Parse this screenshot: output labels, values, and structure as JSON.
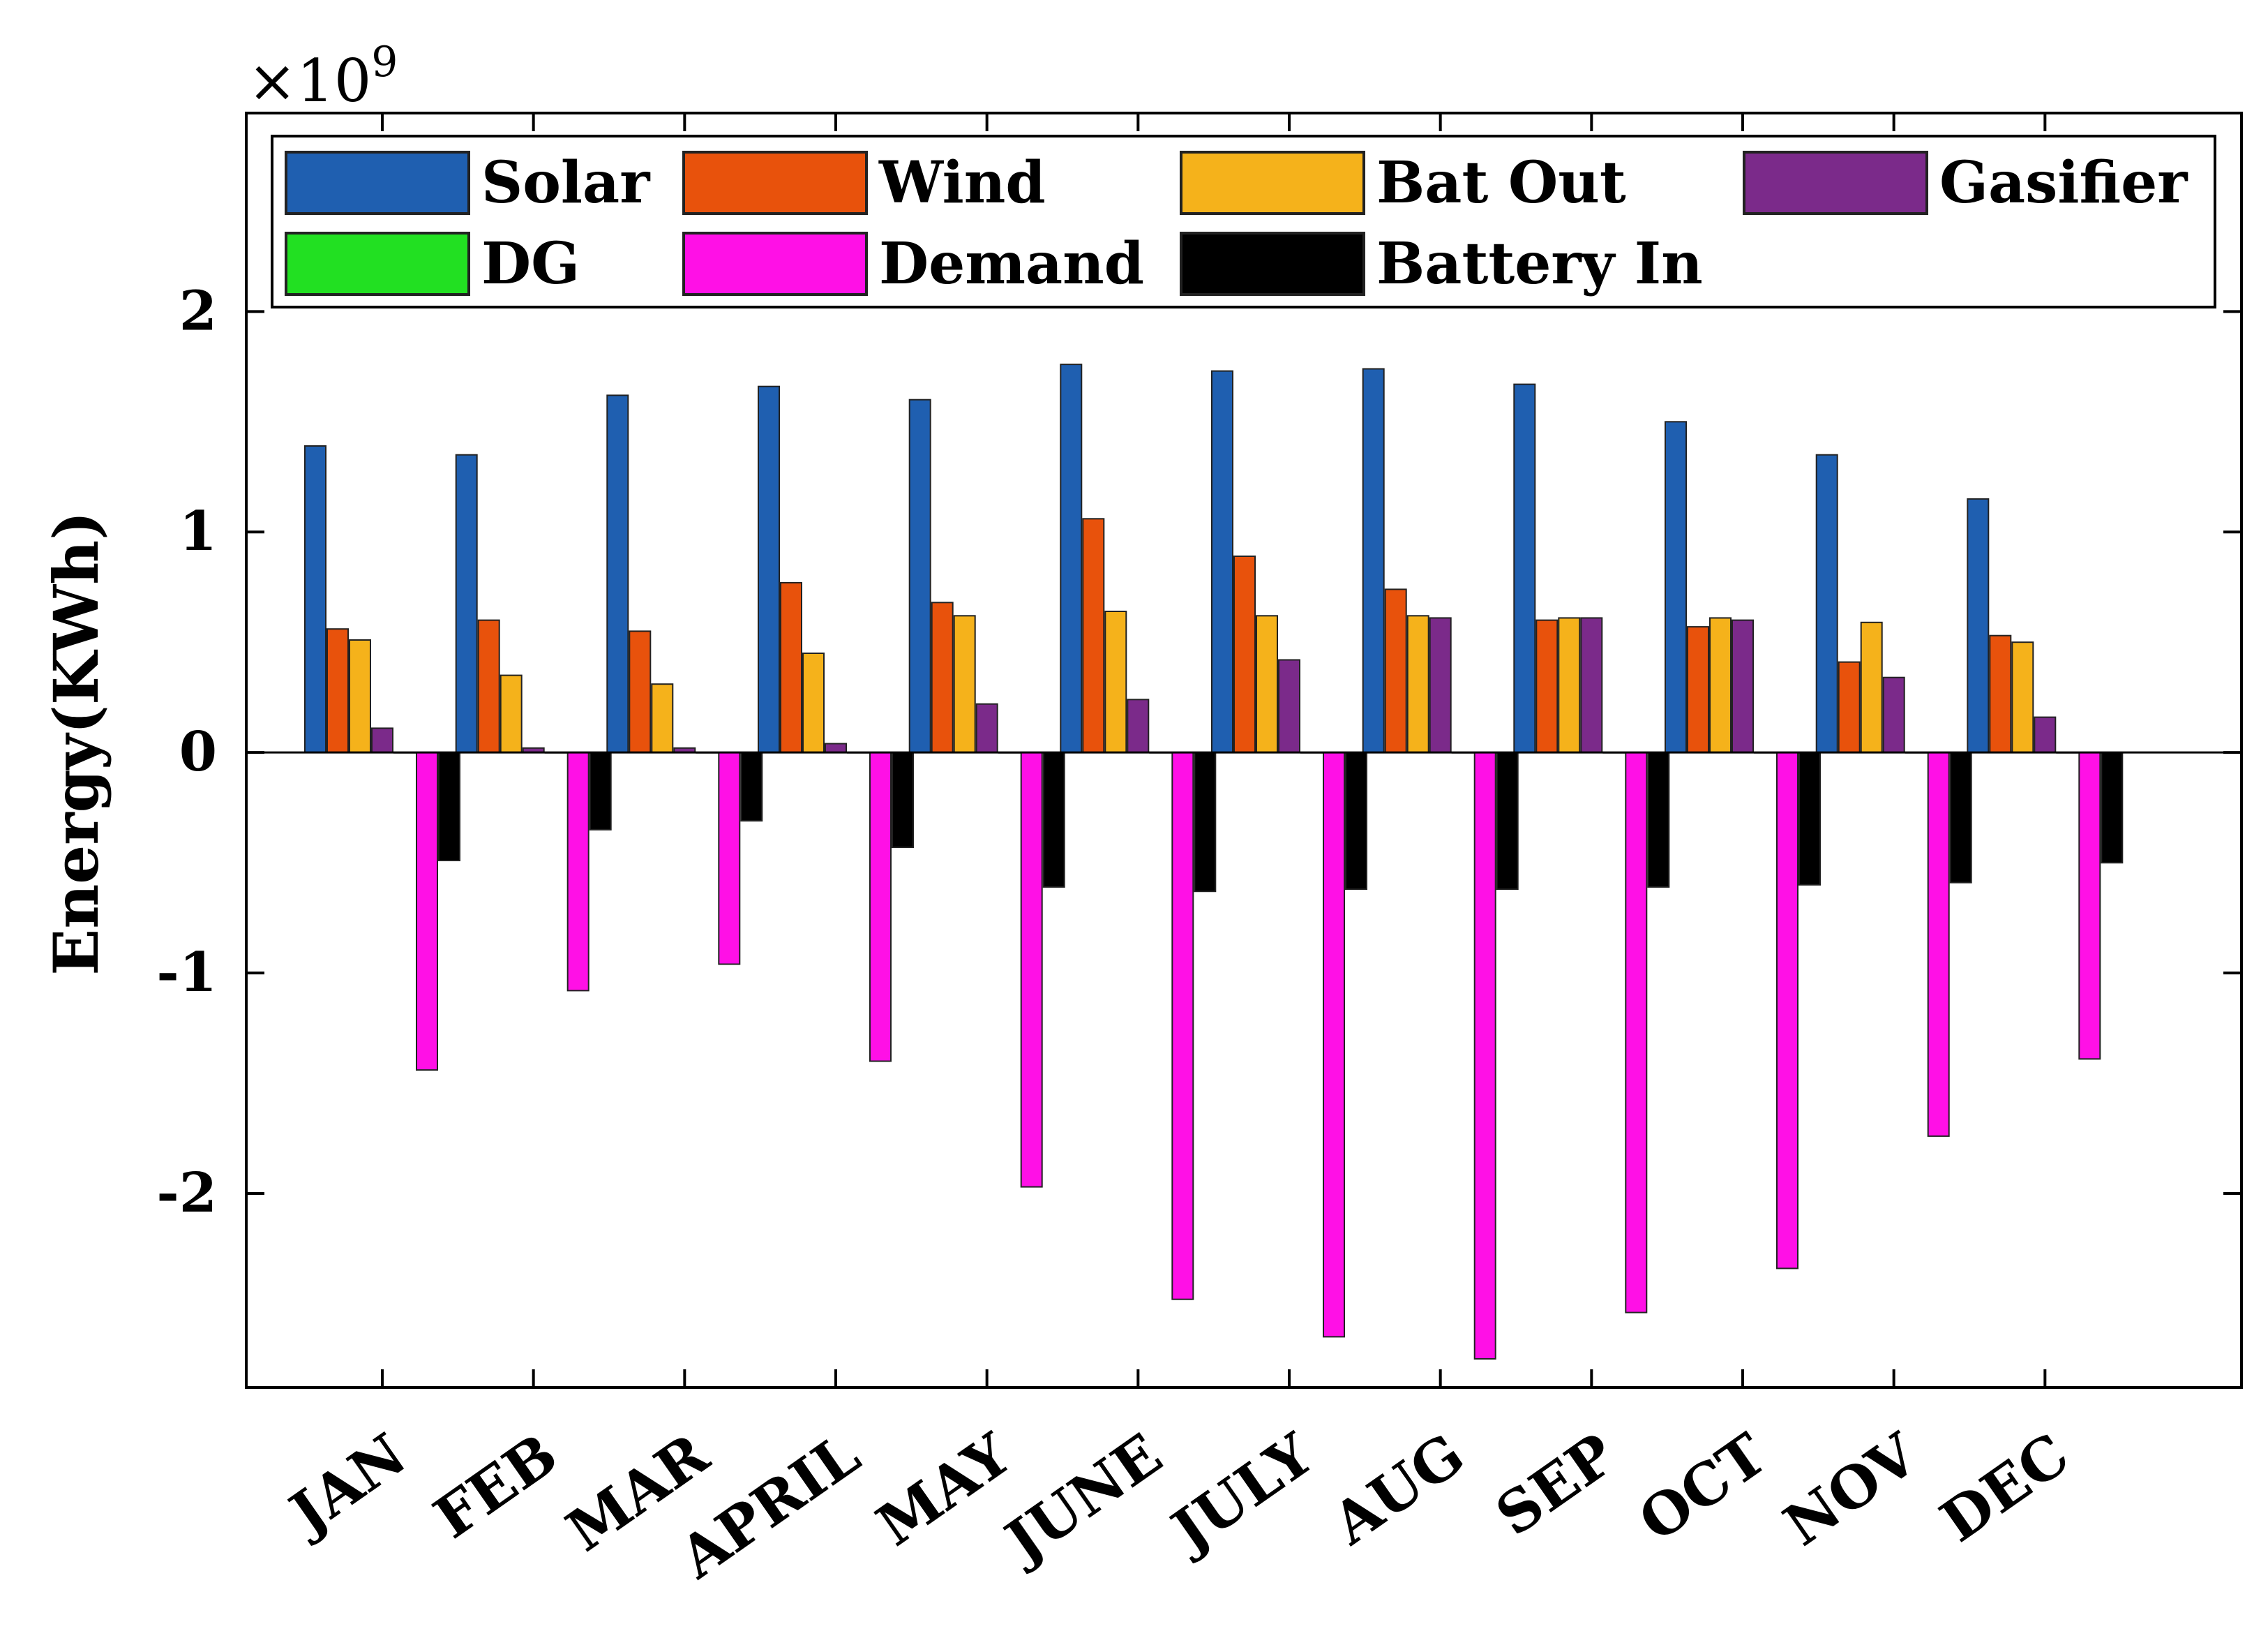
{
  "chart_data": {
    "type": "bar",
    "title": "",
    "xlabel": "",
    "ylabel": "Energy(KWh)",
    "y_multiplier_base": "×10",
    "y_multiplier_exponent": "9",
    "ylim": [
      -2.88,
      2.9
    ],
    "yticks": [
      -2,
      -1,
      0,
      1,
      2
    ],
    "ytick_labels": [
      "-2",
      "-1",
      "0",
      "1",
      "2"
    ],
    "grid": false,
    "legend_position": "top",
    "categories": [
      "JAN",
      "FEB",
      "MAR",
      "APRIL",
      "MAY",
      "JUNE",
      "JULY",
      "AUG",
      "SEP",
      "OCT",
      "NOV",
      "DEC"
    ],
    "series": [
      {
        "name": "Solar",
        "color": "#1f5fb0",
        "values": [
          1.39,
          1.35,
          1.62,
          1.66,
          1.6,
          1.76,
          1.73,
          1.74,
          1.67,
          1.5,
          1.35,
          1.15
        ]
      },
      {
        "name": "Wind",
        "color": "#e8520c",
        "values": [
          0.56,
          0.6,
          0.55,
          0.77,
          0.68,
          1.06,
          0.89,
          0.74,
          0.6,
          0.57,
          0.41,
          0.53
        ]
      },
      {
        "name": "Bat Out",
        "color": "#f5b21b",
        "values": [
          0.51,
          0.35,
          0.31,
          0.45,
          0.62,
          0.64,
          0.62,
          0.62,
          0.61,
          0.61,
          0.59,
          0.5
        ]
      },
      {
        "name": "Gasifier",
        "color": "#7b2a8a",
        "values": [
          0.11,
          0.02,
          0.02,
          0.04,
          0.22,
          0.24,
          0.42,
          0.61,
          0.61,
          0.6,
          0.34,
          0.16
        ]
      },
      {
        "name": "DG",
        "color": "#22e022",
        "values": [
          0,
          0,
          0,
          0,
          0,
          0,
          0,
          0,
          0,
          0,
          0,
          0
        ]
      },
      {
        "name": "Demand",
        "color": "#ff10e6",
        "values": [
          -1.44,
          -1.08,
          -0.96,
          -1.4,
          -1.97,
          -2.48,
          -2.65,
          -2.75,
          -2.54,
          -2.34,
          -1.74,
          -1.39
        ]
      },
      {
        "name": "Battery In",
        "color": "#000000",
        "values": [
          -0.49,
          -0.35,
          -0.31,
          -0.43,
          -0.61,
          -0.63,
          -0.62,
          -0.62,
          -0.61,
          -0.6,
          -0.59,
          -0.5
        ]
      }
    ]
  }
}
